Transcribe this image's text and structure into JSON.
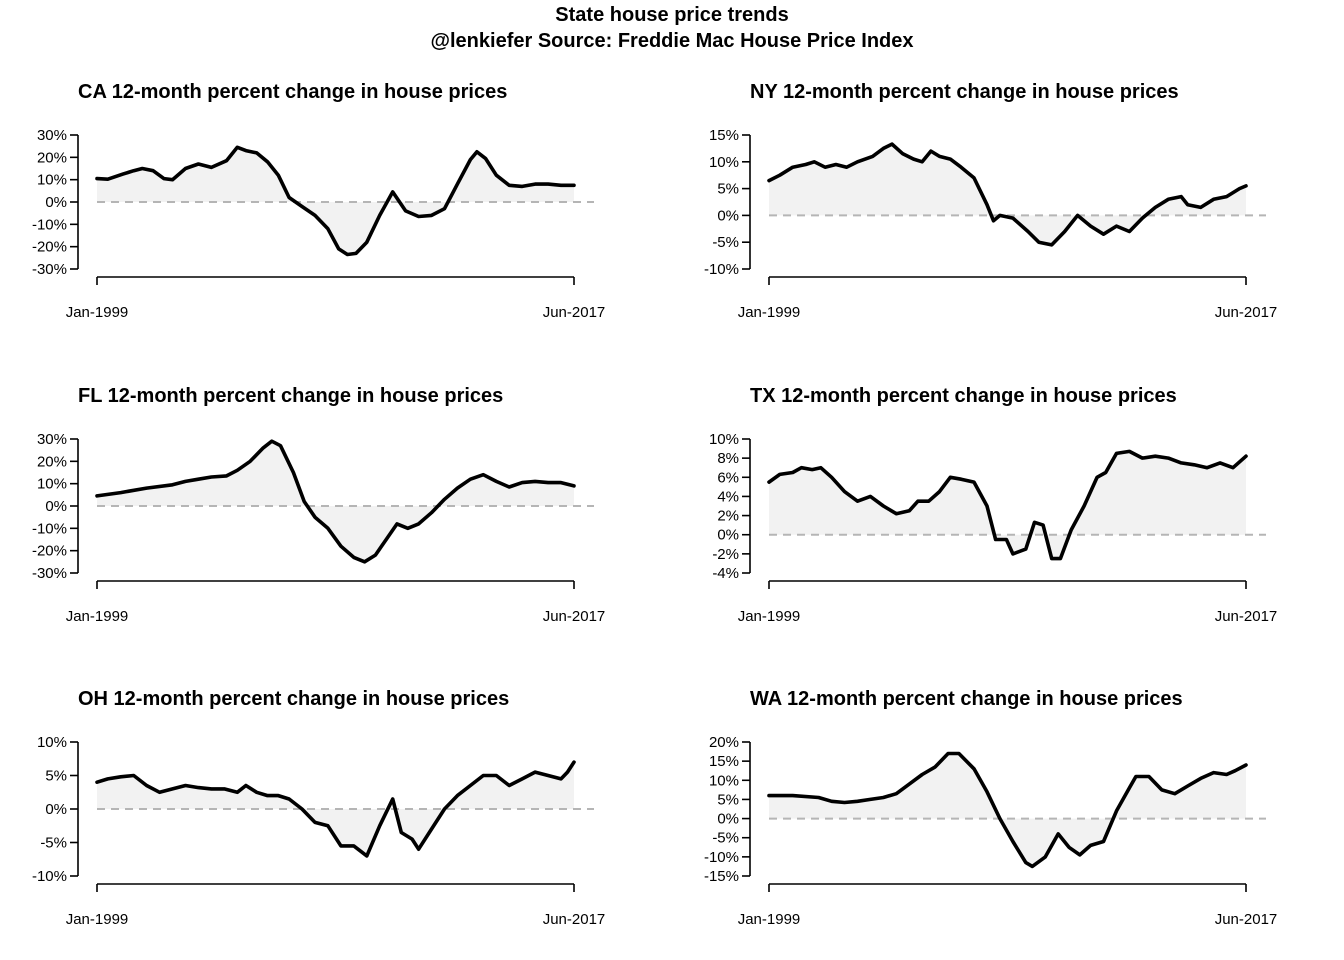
{
  "title": "State house price trends",
  "subtitle": "@lenkiefer Source: Freddie Mac House Price Index",
  "chart_data": [
    {
      "type": "area",
      "title": "CA 12-month percent change in house prices",
      "series": [
        {
          "name": "",
          "values": []
        }
      ],
      "x_labels": [
        "Jan-1999",
        "Jun-2017"
      ],
      "x_range": [
        "Jan-1999",
        "Jun-2017"
      ],
      "ylim": [
        -30,
        30
      ],
      "y_ticks": [
        -30,
        -20,
        -10,
        0,
        10,
        20,
        30
      ],
      "y_tick_labels": [
        "-30%",
        "-20%",
        "-10%",
        "0%",
        "10%",
        "20%",
        "30%"
      ],
      "reference_line": 0,
      "points": [
        [
          "1999-01",
          10.5
        ],
        [
          "1999-06",
          10.2
        ],
        [
          "2000-01",
          12.5
        ],
        [
          "2000-06",
          14.0
        ],
        [
          "2000-10",
          15.0
        ],
        [
          "2001-03",
          14.0
        ],
        [
          "2001-08",
          10.5
        ],
        [
          "2001-12",
          10.0
        ],
        [
          "2002-06",
          15.0
        ],
        [
          "2002-12",
          17.0
        ],
        [
          "2003-06",
          15.5
        ],
        [
          "2004-01",
          18.5
        ],
        [
          "2004-06",
          24.5
        ],
        [
          "2004-10",
          23.0
        ],
        [
          "2005-03",
          22.0
        ],
        [
          "2005-08",
          18.0
        ],
        [
          "2006-01",
          12.0
        ],
        [
          "2006-06",
          2.0
        ],
        [
          "2006-12",
          -2.0
        ],
        [
          "2007-06",
          -6.0
        ],
        [
          "2007-12",
          -12.0
        ],
        [
          "2008-05",
          -21.0
        ],
        [
          "2008-09",
          -23.5
        ],
        [
          "2009-01",
          -23.0
        ],
        [
          "2009-06",
          -18.0
        ],
        [
          "2009-12",
          -6.0
        ],
        [
          "2010-06",
          4.5
        ],
        [
          "2010-12",
          -4.0
        ],
        [
          "2011-06",
          -6.5
        ],
        [
          "2011-12",
          -6.0
        ],
        [
          "2012-06",
          -3.0
        ],
        [
          "2012-12",
          8.0
        ],
        [
          "2013-06",
          19.0
        ],
        [
          "2013-09",
          22.5
        ],
        [
          "2014-01",
          19.5
        ],
        [
          "2014-06",
          12.0
        ],
        [
          "2014-12",
          7.5
        ],
        [
          "2015-06",
          7.0
        ],
        [
          "2015-12",
          8.0
        ],
        [
          "2016-06",
          8.0
        ],
        [
          "2016-12",
          7.5
        ],
        [
          "2017-06",
          7.5
        ]
      ]
    },
    {
      "type": "area",
      "title": "NY 12-month percent change in house prices",
      "series": [
        {
          "name": "",
          "values": []
        }
      ],
      "x_labels": [
        "Jan-1999",
        "Jun-2017"
      ],
      "x_range": [
        "Jan-1999",
        "Jun-2017"
      ],
      "ylim": [
        -10,
        15
      ],
      "y_ticks": [
        -10,
        -5,
        0,
        5,
        10,
        15
      ],
      "y_tick_labels": [
        "-10%",
        "-5%",
        "0%",
        "5%",
        "10%",
        "15%"
      ],
      "reference_line": 0,
      "points": [
        [
          "1999-01",
          6.5
        ],
        [
          "1999-06",
          7.5
        ],
        [
          "1999-12",
          9.0
        ],
        [
          "2000-06",
          9.5
        ],
        [
          "2000-10",
          10.0
        ],
        [
          "2001-03",
          9.0
        ],
        [
          "2001-08",
          9.5
        ],
        [
          "2002-01",
          9.0
        ],
        [
          "2002-06",
          10.0
        ],
        [
          "2003-01",
          11.0
        ],
        [
          "2003-06",
          12.5
        ],
        [
          "2003-10",
          13.3
        ],
        [
          "2004-03",
          11.5
        ],
        [
          "2004-08",
          10.5
        ],
        [
          "2004-12",
          10.0
        ],
        [
          "2005-04",
          12.0
        ],
        [
          "2005-08",
          11.0
        ],
        [
          "2006-01",
          10.5
        ],
        [
          "2006-06",
          9.0
        ],
        [
          "2006-12",
          7.0
        ],
        [
          "2007-06",
          2.0
        ],
        [
          "2007-09",
          -1.0
        ],
        [
          "2007-12",
          0.0
        ],
        [
          "2008-06",
          -0.5
        ],
        [
          "2009-01",
          -3.0
        ],
        [
          "2009-06",
          -5.0
        ],
        [
          "2009-12",
          -5.5
        ],
        [
          "2010-06",
          -3.0
        ],
        [
          "2010-12",
          0.0
        ],
        [
          "2011-06",
          -2.0
        ],
        [
          "2011-12",
          -3.5
        ],
        [
          "2012-06",
          -2.0
        ],
        [
          "2012-12",
          -3.0
        ],
        [
          "2013-06",
          -0.5
        ],
        [
          "2013-12",
          1.5
        ],
        [
          "2014-06",
          3.0
        ],
        [
          "2014-12",
          3.5
        ],
        [
          "2015-03",
          2.0
        ],
        [
          "2015-09",
          1.5
        ],
        [
          "2016-03",
          3.0
        ],
        [
          "2016-09",
          3.5
        ],
        [
          "2017-03",
          5.0
        ],
        [
          "2017-06",
          5.5
        ]
      ]
    },
    {
      "type": "area",
      "title": "FL 12-month percent change in house prices",
      "series": [
        {
          "name": "",
          "values": []
        }
      ],
      "x_labels": [
        "Jan-1999",
        "Jun-2017"
      ],
      "x_range": [
        "Jan-1999",
        "Jun-2017"
      ],
      "ylim": [
        -30,
        30
      ],
      "y_ticks": [
        -30,
        -20,
        -10,
        0,
        10,
        20,
        30
      ],
      "y_tick_labels": [
        "-30%",
        "-20%",
        "-10%",
        "0%",
        "10%",
        "20%",
        "30%"
      ],
      "reference_line": 0,
      "points": [
        [
          "1999-01",
          4.5
        ],
        [
          "1999-12",
          6.0
        ],
        [
          "2000-12",
          8.0
        ],
        [
          "2001-12",
          9.5
        ],
        [
          "2002-06",
          11.0
        ],
        [
          "2002-12",
          12.0
        ],
        [
          "2003-06",
          13.0
        ],
        [
          "2004-01",
          13.5
        ],
        [
          "2004-06",
          16.0
        ],
        [
          "2004-12",
          20.0
        ],
        [
          "2005-06",
          26.0
        ],
        [
          "2005-10",
          29.0
        ],
        [
          "2006-02",
          27.0
        ],
        [
          "2006-08",
          15.0
        ],
        [
          "2007-01",
          2.0
        ],
        [
          "2007-06",
          -5.0
        ],
        [
          "2007-12",
          -10.0
        ],
        [
          "2008-06",
          -18.0
        ],
        [
          "2008-12",
          -23.0
        ],
        [
          "2009-05",
          -25.0
        ],
        [
          "2009-10",
          -22.0
        ],
        [
          "2010-03",
          -15.0
        ],
        [
          "2010-08",
          -8.0
        ],
        [
          "2011-01",
          -10.0
        ],
        [
          "2011-06",
          -8.0
        ],
        [
          "2011-12",
          -3.0
        ],
        [
          "2012-06",
          3.0
        ],
        [
          "2012-12",
          8.0
        ],
        [
          "2013-06",
          12.0
        ],
        [
          "2013-12",
          14.0
        ],
        [
          "2014-06",
          11.0
        ],
        [
          "2014-12",
          8.5
        ],
        [
          "2015-06",
          10.5
        ],
        [
          "2015-12",
          11.0
        ],
        [
          "2016-06",
          10.5
        ],
        [
          "2016-12",
          10.5
        ],
        [
          "2017-06",
          9.0
        ]
      ]
    },
    {
      "type": "area",
      "title": "TX 12-month percent change in house prices",
      "series": [
        {
          "name": "",
          "values": []
        }
      ],
      "x_labels": [
        "Jan-1999",
        "Jun-2017"
      ],
      "x_range": [
        "Jan-1999",
        "Jun-2017"
      ],
      "ylim": [
        -4,
        10
      ],
      "y_ticks": [
        -4,
        -2,
        0,
        2,
        4,
        6,
        8,
        10
      ],
      "y_tick_labels": [
        "-4%",
        "-2%",
        "0%",
        "2%",
        "4%",
        "6%",
        "8%",
        "10%"
      ],
      "reference_line": 0,
      "points": [
        [
          "1999-01",
          5.5
        ],
        [
          "1999-06",
          6.3
        ],
        [
          "1999-12",
          6.5
        ],
        [
          "2000-04",
          7.0
        ],
        [
          "2000-09",
          6.8
        ],
        [
          "2001-01",
          7.0
        ],
        [
          "2001-06",
          6.0
        ],
        [
          "2001-12",
          4.5
        ],
        [
          "2002-06",
          3.5
        ],
        [
          "2002-12",
          4.0
        ],
        [
          "2003-06",
          3.0
        ],
        [
          "2003-12",
          2.2
        ],
        [
          "2004-06",
          2.5
        ],
        [
          "2004-10",
          3.5
        ],
        [
          "2005-03",
          3.5
        ],
        [
          "2005-08",
          4.5
        ],
        [
          "2006-01",
          6.0
        ],
        [
          "2006-06",
          5.8
        ],
        [
          "2006-12",
          5.5
        ],
        [
          "2007-06",
          3.0
        ],
        [
          "2007-10",
          -0.5
        ],
        [
          "2008-03",
          -0.5
        ],
        [
          "2008-06",
          -2.0
        ],
        [
          "2008-12",
          -1.5
        ],
        [
          "2009-04",
          1.3
        ],
        [
          "2009-08",
          1.0
        ],
        [
          "2009-12",
          -2.5
        ],
        [
          "2010-04",
          -2.5
        ],
        [
          "2010-09",
          0.5
        ],
        [
          "2011-03",
          3.0
        ],
        [
          "2011-09",
          6.0
        ],
        [
          "2012-01",
          6.5
        ],
        [
          "2012-06",
          8.5
        ],
        [
          "2012-12",
          8.7
        ],
        [
          "2013-06",
          8.0
        ],
        [
          "2013-12",
          8.2
        ],
        [
          "2014-06",
          8.0
        ],
        [
          "2014-12",
          7.5
        ],
        [
          "2015-06",
          7.3
        ],
        [
          "2015-12",
          7.0
        ],
        [
          "2016-06",
          7.5
        ],
        [
          "2016-12",
          7.0
        ],
        [
          "2017-06",
          8.2
        ]
      ]
    },
    {
      "type": "area",
      "title": "OH 12-month percent change in house prices",
      "series": [
        {
          "name": "",
          "values": []
        }
      ],
      "x_labels": [
        "Jan-1999",
        "Jun-2017"
      ],
      "x_range": [
        "Jan-1999",
        "Jun-2017"
      ],
      "ylim": [
        -10,
        10
      ],
      "y_ticks": [
        -10,
        -5,
        0,
        5,
        10
      ],
      "y_tick_labels": [
        "-10%",
        "-5%",
        "0%",
        "5%",
        "10%"
      ],
      "reference_line": 0,
      "points": [
        [
          "1999-01",
          4.0
        ],
        [
          "1999-06",
          4.5
        ],
        [
          "1999-12",
          4.8
        ],
        [
          "2000-06",
          5.0
        ],
        [
          "2000-12",
          3.5
        ],
        [
          "2001-06",
          2.5
        ],
        [
          "2001-12",
          3.0
        ],
        [
          "2002-06",
          3.5
        ],
        [
          "2002-12",
          3.2
        ],
        [
          "2003-06",
          3.0
        ],
        [
          "2003-12",
          3.0
        ],
        [
          "2004-06",
          2.5
        ],
        [
          "2004-10",
          3.5
        ],
        [
          "2005-03",
          2.5
        ],
        [
          "2005-08",
          2.0
        ],
        [
          "2006-01",
          2.0
        ],
        [
          "2006-06",
          1.5
        ],
        [
          "2006-12",
          0.0
        ],
        [
          "2007-06",
          -2.0
        ],
        [
          "2007-12",
          -2.5
        ],
        [
          "2008-06",
          -5.5
        ],
        [
          "2008-12",
          -5.5
        ],
        [
          "2009-06",
          -7.0
        ],
        [
          "2009-12",
          -2.5
        ],
        [
          "2010-06",
          1.5
        ],
        [
          "2010-10",
          -3.5
        ],
        [
          "2011-03",
          -4.5
        ],
        [
          "2011-06",
          -6.0
        ],
        [
          "2011-12",
          -3.0
        ],
        [
          "2012-06",
          0.0
        ],
        [
          "2012-12",
          2.0
        ],
        [
          "2013-06",
          3.5
        ],
        [
          "2013-12",
          5.0
        ],
        [
          "2014-06",
          5.0
        ],
        [
          "2014-12",
          3.5
        ],
        [
          "2015-06",
          4.5
        ],
        [
          "2015-12",
          5.5
        ],
        [
          "2016-06",
          5.0
        ],
        [
          "2016-12",
          4.5
        ],
        [
          "2017-03",
          5.5
        ],
        [
          "2017-06",
          7.0
        ]
      ]
    },
    {
      "type": "area",
      "title": "WA 12-month percent change in house prices",
      "series": [
        {
          "name": "",
          "values": []
        }
      ],
      "x_labels": [
        "Jan-1999",
        "Jun-2017"
      ],
      "x_range": [
        "Jan-1999",
        "Jun-2017"
      ],
      "ylim": [
        -15,
        20
      ],
      "y_ticks": [
        -15,
        -10,
        -5,
        0,
        5,
        10,
        15,
        20
      ],
      "y_tick_labels": [
        "-15%",
        "-10%",
        "-5%",
        "0%",
        "5%",
        "10%",
        "15%",
        "20%"
      ],
      "reference_line": 0,
      "points": [
        [
          "1999-01",
          6.0
        ],
        [
          "1999-12",
          6.0
        ],
        [
          "2000-12",
          5.5
        ],
        [
          "2001-06",
          4.5
        ],
        [
          "2001-12",
          4.2
        ],
        [
          "2002-06",
          4.5
        ],
        [
          "2002-12",
          5.0
        ],
        [
          "2003-06",
          5.5
        ],
        [
          "2003-12",
          6.5
        ],
        [
          "2004-06",
          9.0
        ],
        [
          "2004-12",
          11.5
        ],
        [
          "2005-06",
          13.5
        ],
        [
          "2005-12",
          17.0
        ],
        [
          "2006-05",
          17.0
        ],
        [
          "2006-12",
          13.0
        ],
        [
          "2007-06",
          7.0
        ],
        [
          "2007-12",
          0.0
        ],
        [
          "2008-06",
          -6.0
        ],
        [
          "2008-12",
          -11.5
        ],
        [
          "2009-03",
          -12.5
        ],
        [
          "2009-09",
          -10.0
        ],
        [
          "2010-03",
          -4.0
        ],
        [
          "2010-08",
          -7.5
        ],
        [
          "2011-01",
          -9.5
        ],
        [
          "2011-06",
          -7.0
        ],
        [
          "2011-12",
          -6.0
        ],
        [
          "2012-06",
          2.0
        ],
        [
          "2012-12",
          8.0
        ],
        [
          "2013-03",
          11.0
        ],
        [
          "2013-09",
          11.0
        ],
        [
          "2014-03",
          7.5
        ],
        [
          "2014-09",
          6.5
        ],
        [
          "2015-03",
          8.5
        ],
        [
          "2015-09",
          10.5
        ],
        [
          "2016-03",
          12.0
        ],
        [
          "2016-09",
          11.5
        ],
        [
          "2017-01",
          12.5
        ],
        [
          "2017-06",
          14.0
        ]
      ]
    }
  ]
}
